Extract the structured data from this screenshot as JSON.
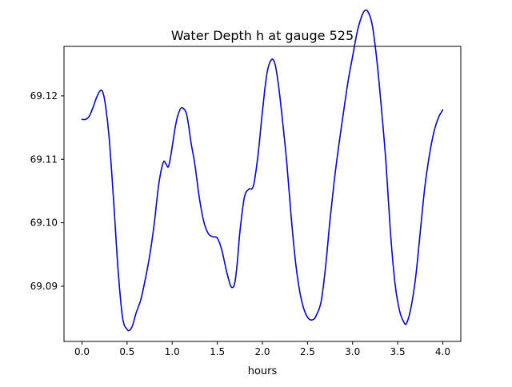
{
  "chart_data": {
    "type": "line",
    "title": "Water Depth h at gauge 525",
    "xlabel": "hours",
    "ylabel": "",
    "xlim": [
      -0.2,
      4.2
    ],
    "ylim": [
      69.0813,
      69.1278
    ],
    "xticks": [
      0.0,
      0.5,
      1.0,
      1.5,
      2.0,
      2.5,
      3.0,
      3.5,
      4.0
    ],
    "xtick_labels": [
      "0.0",
      "0.5",
      "1.0",
      "1.5",
      "2.0",
      "2.5",
      "3.0",
      "3.5",
      "4.0"
    ],
    "yticks": [
      69.09,
      69.1,
      69.11,
      69.12
    ],
    "ytick_labels": [
      "69.09",
      "69.10",
      "69.11",
      "69.12"
    ],
    "grid": false,
    "series": [
      {
        "color": "#0000ff",
        "x": [
          0.0,
          0.04,
          0.08,
          0.12,
          0.16,
          0.2,
          0.23,
          0.26,
          0.3,
          0.35,
          0.4,
          0.45,
          0.5,
          0.53,
          0.56,
          0.6,
          0.65,
          0.7,
          0.75,
          0.8,
          0.85,
          0.9,
          0.93,
          0.96,
          1.0,
          1.03,
          1.06,
          1.1,
          1.15,
          1.18,
          1.21,
          1.25,
          1.3,
          1.35,
          1.4,
          1.45,
          1.5,
          1.55,
          1.6,
          1.65,
          1.69,
          1.72,
          1.75,
          1.8,
          1.85,
          1.9,
          1.95,
          2.0,
          2.05,
          2.1,
          2.14,
          2.18,
          2.22,
          2.27,
          2.32,
          2.37,
          2.42,
          2.47,
          2.52,
          2.57,
          2.6,
          2.65,
          2.7,
          2.75,
          2.8,
          2.85,
          2.9,
          2.95,
          3.0,
          3.05,
          3.1,
          3.14,
          3.18,
          3.22,
          3.27,
          3.32,
          3.37,
          3.42,
          3.47,
          3.52,
          3.57,
          3.6,
          3.65,
          3.7,
          3.75,
          3.8,
          3.85,
          3.9,
          3.95,
          4.0
        ],
        "y": [
          69.1163,
          69.1163,
          69.1168,
          69.1181,
          69.1197,
          69.1208,
          69.1206,
          69.1185,
          69.1135,
          69.1035,
          69.0925,
          69.085,
          69.0832,
          69.0831,
          69.0838,
          69.0858,
          69.0878,
          69.091,
          69.0948,
          69.0998,
          69.106,
          69.1095,
          69.1093,
          69.1089,
          69.112,
          69.1148,
          69.1168,
          69.1181,
          69.1175,
          69.1155,
          69.1125,
          69.1093,
          69.104,
          69.1002,
          69.0983,
          69.0978,
          69.0976,
          69.0957,
          69.0925,
          69.09,
          69.0903,
          69.0935,
          69.0985,
          69.104,
          69.1053,
          69.1058,
          69.1105,
          69.1175,
          69.1235,
          69.1257,
          69.125,
          69.1215,
          69.1165,
          69.1095,
          69.1008,
          69.0935,
          69.0887,
          69.086,
          69.0848,
          69.0848,
          69.0855,
          69.0875,
          69.093,
          69.1005,
          69.107,
          69.1125,
          69.1175,
          69.1223,
          69.1262,
          69.13,
          69.1325,
          69.1335,
          69.133,
          69.131,
          69.1255,
          69.118,
          69.1095,
          69.0985,
          69.0905,
          69.0862,
          69.0843,
          69.0842,
          69.0868,
          69.0915,
          69.0985,
          69.1055,
          69.1105,
          69.1142,
          69.1165,
          69.1178
        ]
      }
    ]
  }
}
